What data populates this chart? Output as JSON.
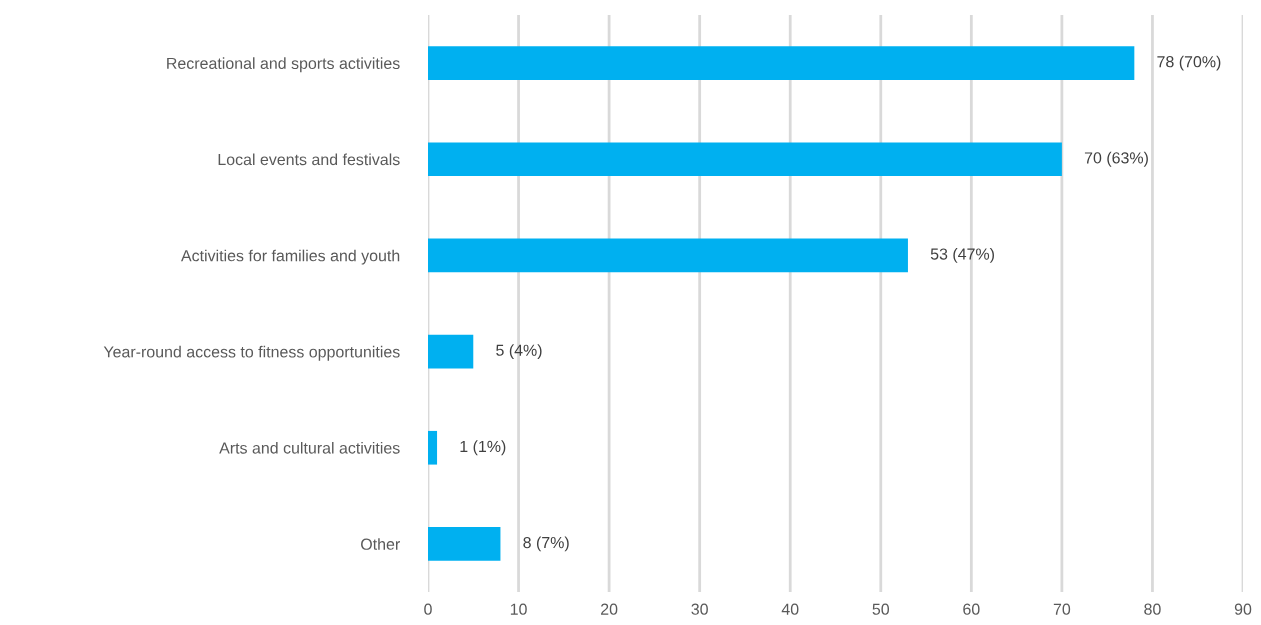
{
  "chart_data": {
    "type": "bar",
    "orientation": "horizontal",
    "categories": [
      "Recreational and sports activities",
      "Local events and festivals",
      "Activities for families and youth",
      "Year-round access to fitness opportunities",
      "Arts and cultural activities",
      "Other"
    ],
    "values": [
      78,
      70,
      53,
      5,
      1,
      8
    ],
    "value_labels": [
      "78 (70%)",
      "70 (63%)",
      "53 (47%)",
      "5 (4%)",
      "1 (1%)",
      "8 (7%)"
    ],
    "color": "#00b0f0",
    "xlim": [
      0,
      90
    ],
    "xticks": [
      0,
      10,
      20,
      30,
      40,
      50,
      60,
      70,
      80,
      90
    ],
    "grid": "x",
    "legend": false
  }
}
